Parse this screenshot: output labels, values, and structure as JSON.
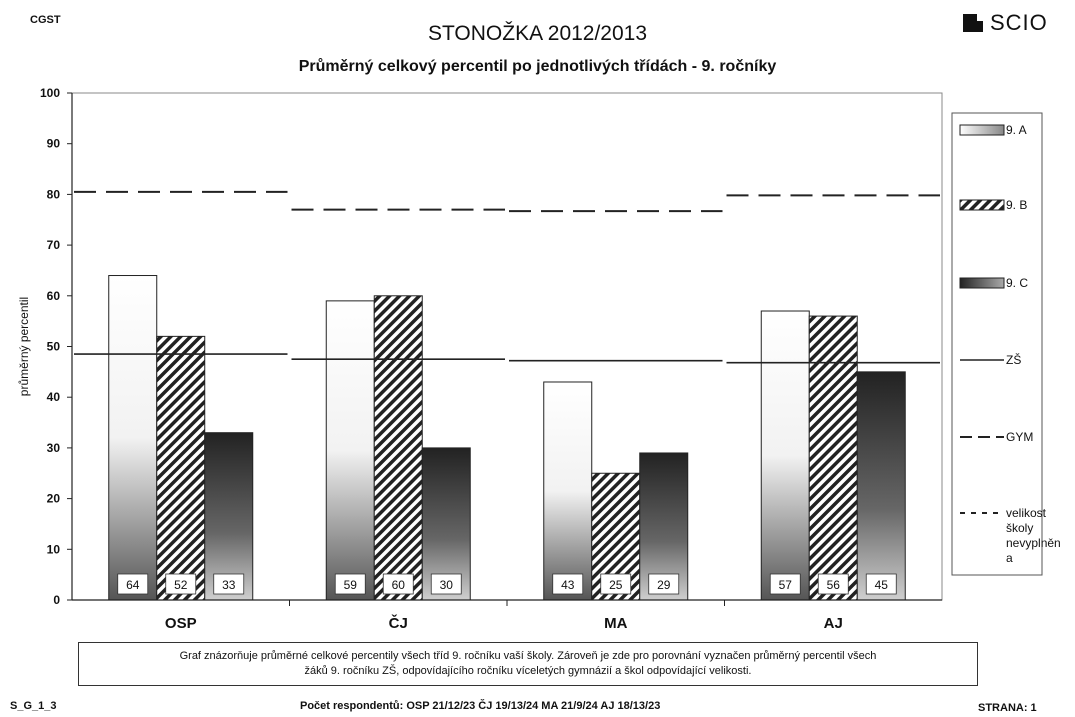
{
  "header": {
    "code": "CGST",
    "title": "STONOŽKA 2012/2013",
    "logo_text": "SCIO"
  },
  "chart_data": {
    "type": "bar",
    "title": "Průměrný celkový percentil po jednotlivých třídách - 9. ročníky",
    "ylabel": "průměrný percentil",
    "xlabel": "",
    "ylim": [
      0,
      100
    ],
    "yticks": [
      0,
      10,
      20,
      30,
      40,
      50,
      60,
      70,
      80,
      90,
      100
    ],
    "categories": [
      "OSP",
      "ČJ",
      "MA",
      "AJ"
    ],
    "series": [
      {
        "name": "9. A",
        "values": [
          64,
          59,
          43,
          57
        ],
        "value_labels": [
          "64",
          "59",
          "43",
          "57"
        ],
        "style": "gradient-light"
      },
      {
        "name": "9. B",
        "values": [
          52,
          60,
          25,
          56
        ],
        "value_labels": [
          "52",
          "60",
          "25",
          "56"
        ],
        "style": "hatched"
      },
      {
        "name": "9. C",
        "values": [
          33,
          30,
          29,
          45
        ],
        "value_labels": [
          "33",
          "30",
          "29",
          "45"
        ],
        "style": "gradient-dark"
      }
    ],
    "reference_lines": [
      {
        "name": "ZŠ",
        "style": "solid",
        "values": [
          48.5,
          47.5,
          47.2,
          46.8
        ]
      },
      {
        "name": "GYM",
        "style": "dashed",
        "values": [
          80.5,
          77,
          76.7,
          79.8
        ]
      },
      {
        "name": "velikost školy nevyplněn a",
        "style": "dotted",
        "values": []
      }
    ],
    "legend": {
      "placement": "right",
      "entries": [
        "9. A",
        "9. B",
        "9. C",
        "ZŠ",
        "GYM",
        "velikost\nškoly\nnevyplněn\na"
      ]
    },
    "grid": "horizontal"
  },
  "caption": {
    "line1": "Graf znázorňuje průměrné celkové percentily všech tříd 9. ročníku vaší školy. Zároveň je zde pro porovnání vyznačen průměrný percentil všech",
    "line2": "žáků 9. ročníku ZŠ, odpovídajícího ročníku víceletých gymnázií a škol odpovídající velikosti."
  },
  "footer": {
    "left": "S_G_1_3",
    "middle": "Počet respondentů: OSP 21/12/23 ČJ 19/13/24 MA 21/9/24 AJ 18/13/23",
    "right": "STRANA: 1"
  }
}
